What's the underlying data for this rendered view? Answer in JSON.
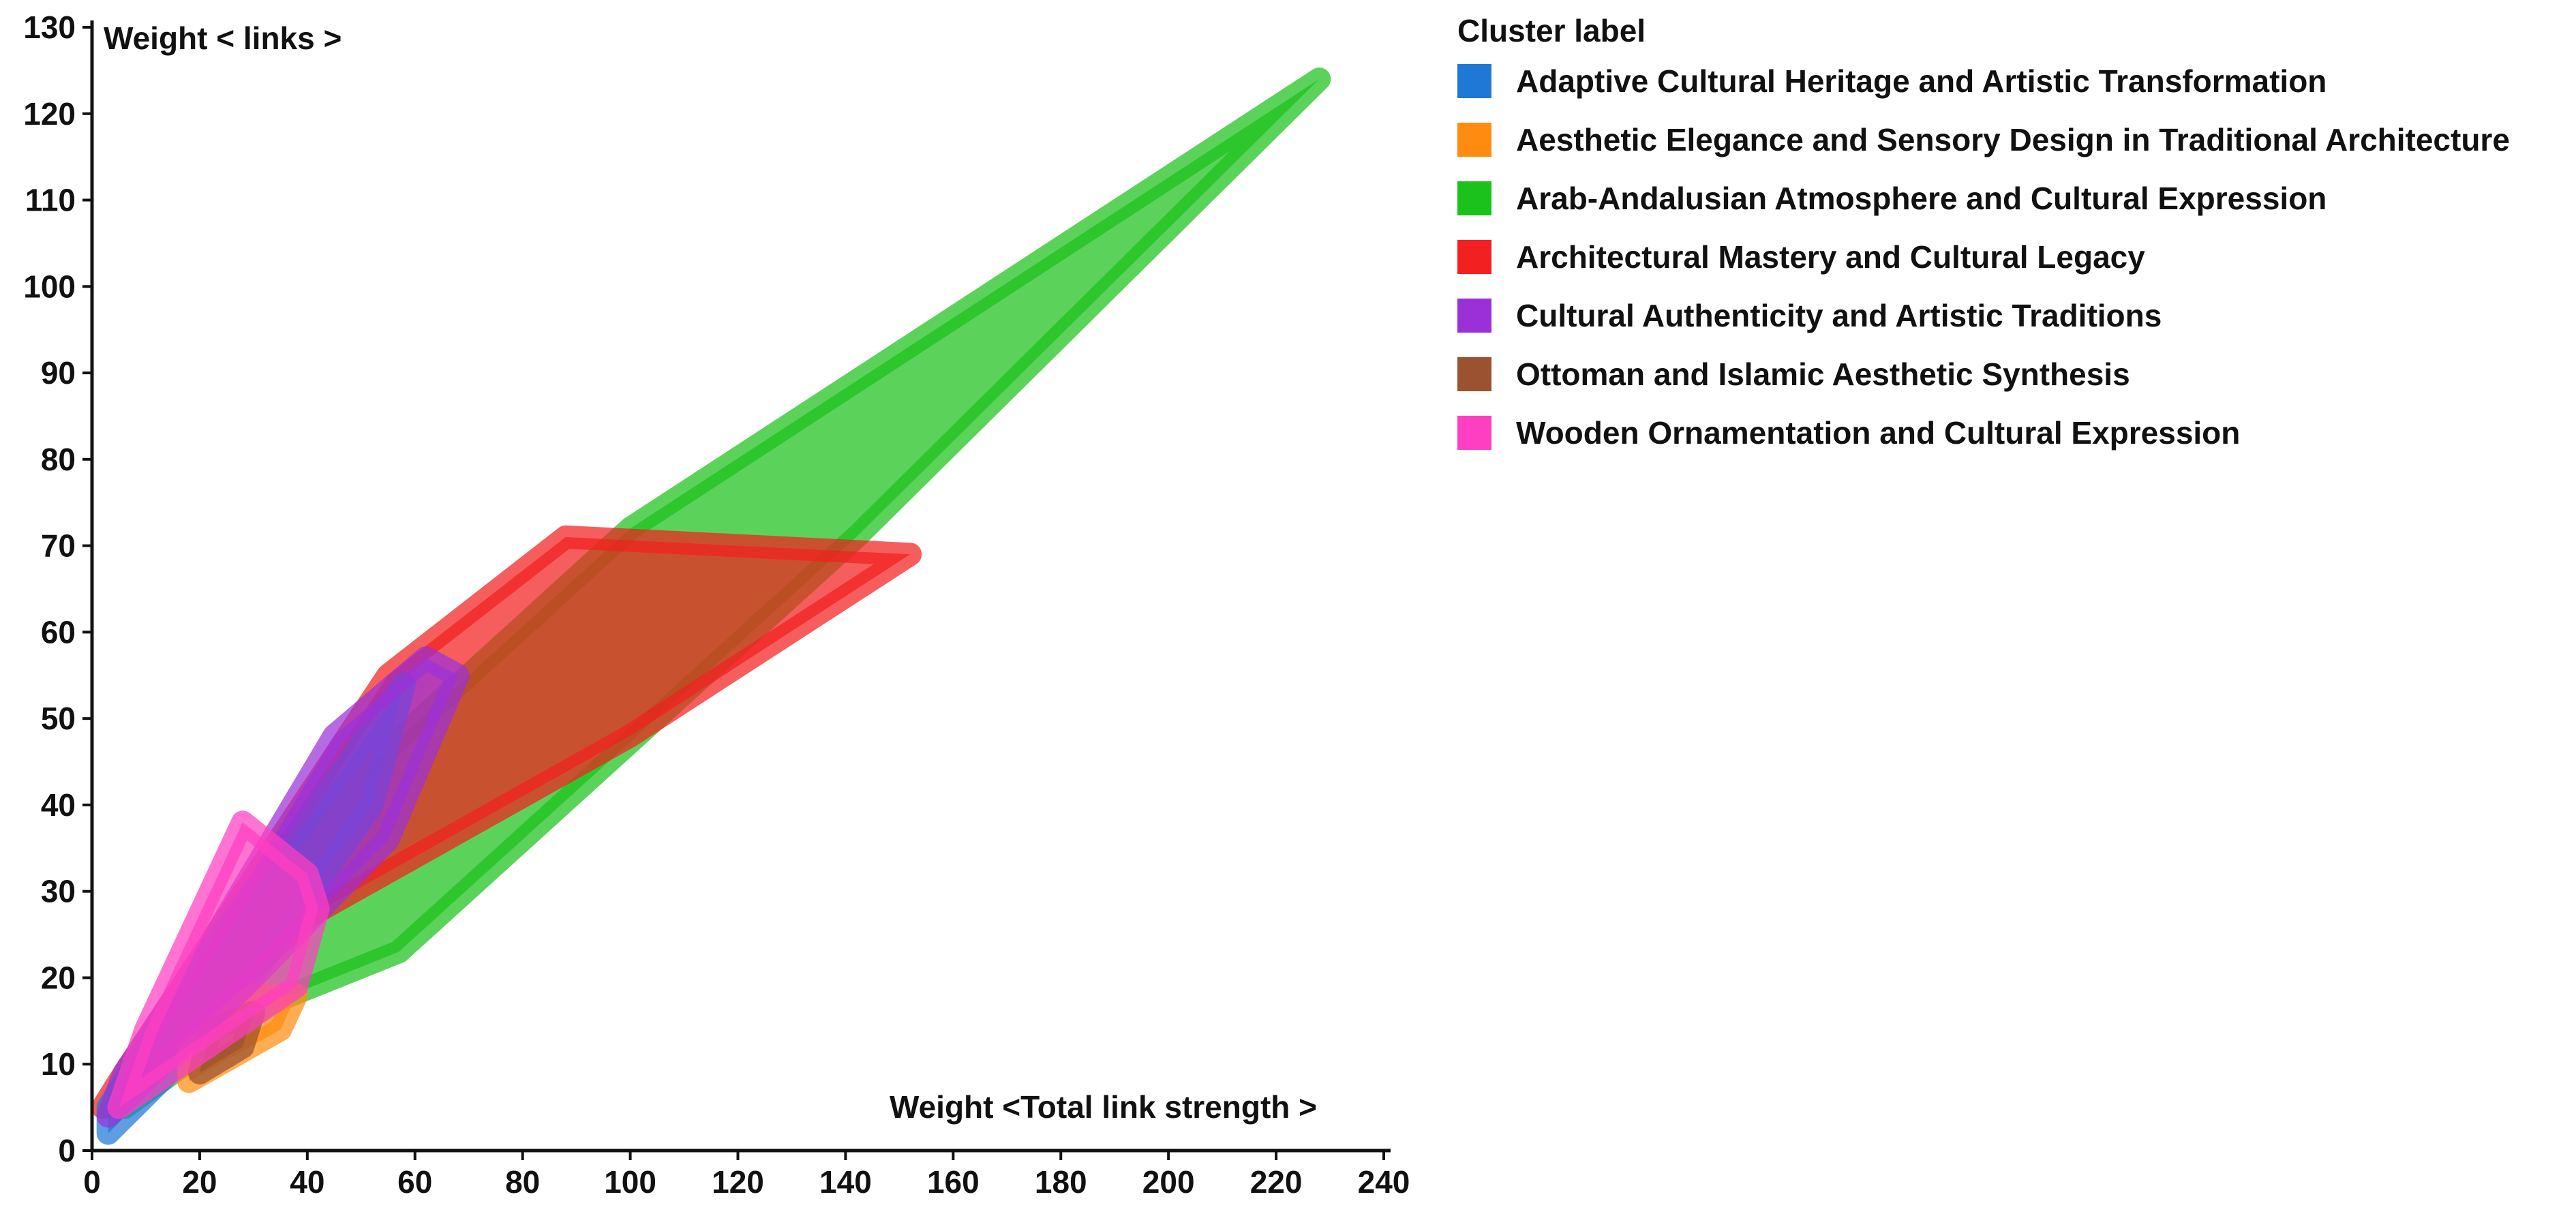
{
  "chart_data": {
    "type": "area",
    "title": "",
    "xlabel": "Weight  <Total link strength >",
    "ylabel": "Weight  < links >",
    "xlim": [
      0,
      240
    ],
    "ylim": [
      0,
      130
    ],
    "x_ticks": [
      0,
      20,
      40,
      60,
      80,
      100,
      120,
      140,
      160,
      180,
      200,
      220,
      240
    ],
    "y_ticks": [
      0,
      10,
      20,
      30,
      40,
      50,
      60,
      70,
      80,
      90,
      100,
      110,
      120,
      130
    ],
    "grid": false,
    "legend_title": "Cluster label",
    "legend_position": "top-right",
    "series": [
      {
        "name": "Arab-Andalusian Atmosphere and Cultural Expression",
        "color": "#1cc21c",
        "points": [
          [
            6,
            5
          ],
          [
            33,
            17
          ],
          [
            57,
            23
          ],
          [
            142,
            71
          ],
          [
            228,
            124
          ],
          [
            100,
            72
          ],
          [
            40,
            38
          ],
          [
            12,
            12
          ]
        ]
      },
      {
        "name": "Architectural Mastery and Cultural Legacy",
        "color": "#f22020",
        "points": [
          [
            2,
            5
          ],
          [
            40,
            27
          ],
          [
            100,
            48
          ],
          [
            152,
            69
          ],
          [
            88,
            71
          ],
          [
            55,
            55
          ],
          [
            22,
            24
          ],
          [
            5,
            8
          ]
        ]
      },
      {
        "name": "Adaptive Cultural Heritage and Artistic Transformation",
        "color": "#1f77d6",
        "points": [
          [
            3,
            2
          ],
          [
            24,
            15
          ],
          [
            52,
            40
          ],
          [
            58,
            54
          ],
          [
            42,
            40
          ],
          [
            18,
            20
          ],
          [
            3,
            5
          ]
        ]
      },
      {
        "name": "Aesthetic Elegance and Sensory Design in Traditional Architecture",
        "color": "#ff8c10",
        "points": [
          [
            18,
            8
          ],
          [
            35,
            14
          ],
          [
            38,
            18
          ],
          [
            30,
            18
          ],
          [
            18,
            12
          ]
        ]
      },
      {
        "name": "Ottoman and Islamic Aesthetic Synthesis",
        "color": "#9a5230",
        "points": [
          [
            20,
            9
          ],
          [
            28,
            12
          ],
          [
            30,
            16
          ],
          [
            22,
            14
          ]
        ]
      },
      {
        "name": "Cultural Authenticity and Artistic Traditions",
        "color": "#9b30d8",
        "points": [
          [
            3,
            4
          ],
          [
            30,
            20
          ],
          [
            55,
            36
          ],
          [
            68,
            55
          ],
          [
            62,
            57
          ],
          [
            45,
            48
          ],
          [
            22,
            24
          ],
          [
            6,
            9
          ]
        ]
      },
      {
        "name": "Wooden Ornamentation and Cultural Expression",
        "color": "#ff3fc2",
        "points": [
          [
            5,
            5
          ],
          [
            38,
            19
          ],
          [
            42,
            28
          ],
          [
            40,
            32
          ],
          [
            28,
            38
          ],
          [
            10,
            14
          ]
        ]
      }
    ],
    "legend_order": [
      "Adaptive Cultural Heritage and Artistic Transformation",
      "Aesthetic Elegance and Sensory Design in Traditional Architecture",
      "Arab-Andalusian Atmosphere and Cultural Expression",
      "Architectural Mastery and Cultural Legacy",
      "Cultural Authenticity and Artistic Traditions",
      "Ottoman and Islamic Aesthetic Synthesis",
      "Wooden Ornamentation and Cultural Expression"
    ]
  }
}
